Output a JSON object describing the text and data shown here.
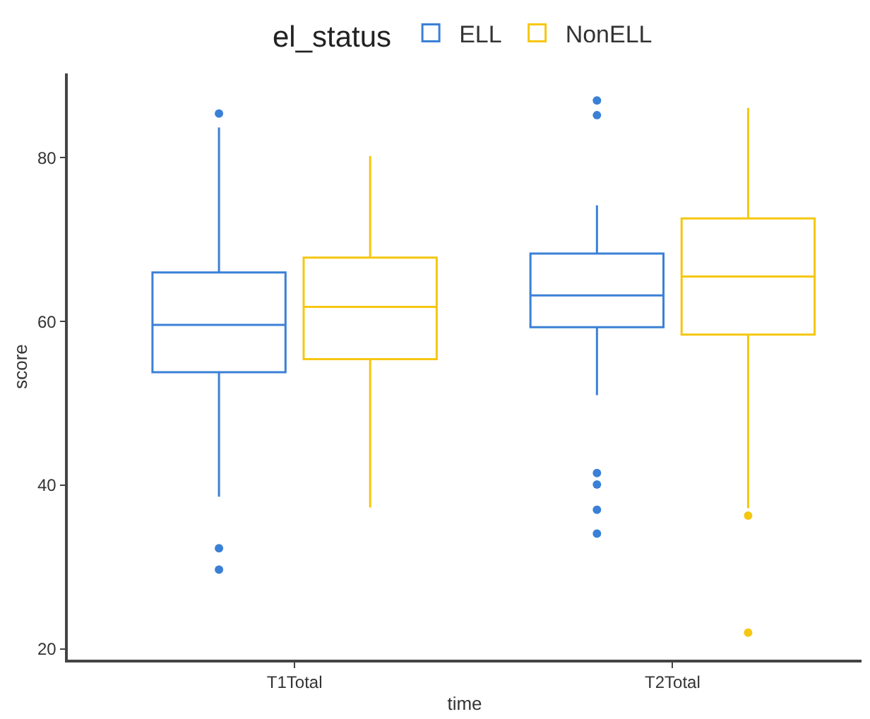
{
  "chart_data": {
    "type": "box",
    "xlabel": "time",
    "ylabel": "score",
    "legend_title": "el_status",
    "legend": "top",
    "categories": [
      "T1Total",
      "T2Total"
    ],
    "ylim": [
      18.7,
      90.3
    ],
    "yticks": [
      20,
      40,
      60,
      80
    ],
    "series": [
      {
        "name": "ELL",
        "color": "#3a80d6",
        "boxes": [
          {
            "low": 38.6,
            "q1": 53.8,
            "median": 59.6,
            "q3": 66.0,
            "high": 83.7,
            "outliers": [
              85.4,
              32.3,
              29.7
            ]
          },
          {
            "low": 51.0,
            "q1": 59.3,
            "median": 63.2,
            "q3": 68.3,
            "high": 74.2,
            "outliers": [
              87.0,
              85.2,
              41.5,
              40.1,
              37.0,
              34.1
            ]
          }
        ]
      },
      {
        "name": "NonELL",
        "color": "#f5c710",
        "boxes": [
          {
            "low": 37.3,
            "q1": 55.4,
            "median": 61.8,
            "q3": 67.8,
            "high": 80.2
          },
          {
            "low": 37.2,
            "q1": 58.4,
            "median": 65.5,
            "q3": 72.6,
            "high": 86.1,
            "outliers": [
              36.3,
              22.0
            ]
          }
        ]
      }
    ]
  }
}
